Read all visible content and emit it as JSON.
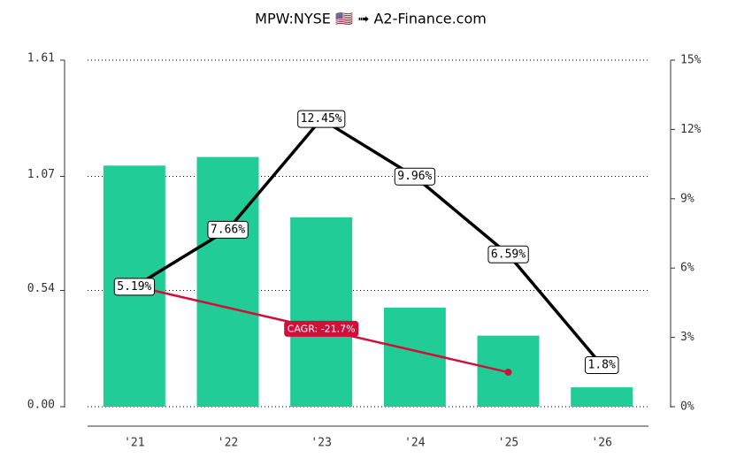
{
  "chart_data": {
    "type": "bar",
    "title": "MPW:NYSE 🇺🇸 ➟ A2-Finance.com",
    "categories": [
      "'21",
      "'22",
      "'23",
      "'24",
      "'25",
      "'26"
    ],
    "series": [
      {
        "type": "bar",
        "color": "#22cc96",
        "values": [
          1.12,
          1.16,
          0.88,
          0.46,
          0.33,
          0.09
        ]
      },
      {
        "type": "line",
        "axis": "y2",
        "color": "#000000",
        "values": [
          5.19,
          7.66,
          12.45,
          9.96,
          6.59,
          1.8
        ],
        "value_labels": [
          "5.19%",
          "7.66%",
          "12.45%",
          "9.96%",
          "6.59%",
          "1.8%"
        ]
      }
    ],
    "cagr": {
      "label": "CAGR: -21.7%",
      "color": "#d0103a",
      "categories": [
        "'21",
        "'25"
      ],
      "values": [
        0.56,
        0.16
      ]
    },
    "ylim": [
      0,
      1.61
    ],
    "yticks": [
      {
        "value": 0,
        "label": "0.00"
      },
      0.54,
      1.07,
      1.61
    ],
    "y2lim": [
      0,
      15
    ],
    "y2ticks": [
      {
        "value": 0,
        "label": "0%"
      },
      {
        "value": 3,
        "label": "3%"
      },
      {
        "value": 6,
        "label": "6%"
      },
      {
        "value": 9,
        "label": "9%"
      },
      {
        "value": 12,
        "label": "12%"
      },
      {
        "value": 15,
        "label": "15%"
      }
    ],
    "grid": true
  }
}
